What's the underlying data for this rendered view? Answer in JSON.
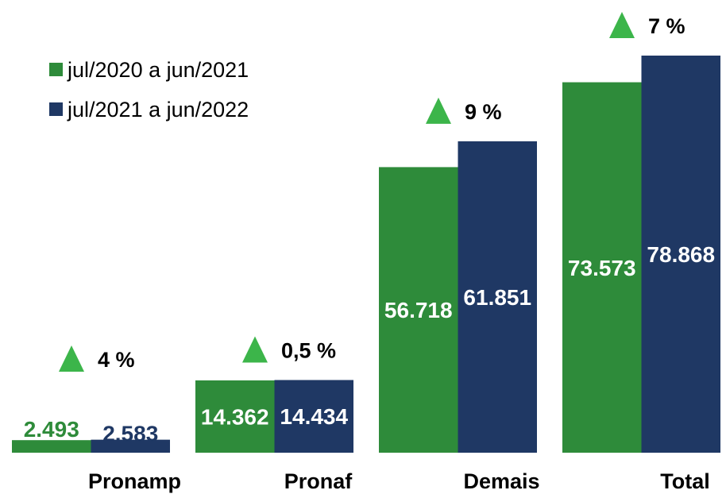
{
  "chart_data": {
    "type": "bar",
    "categories": [
      "Pronamp",
      "Pronaf",
      "Demais",
      "Total"
    ],
    "series": [
      {
        "name": "jul/2020 a jun/2021",
        "color": "#2e8b3a",
        "values": [
          2493,
          14362,
          56718,
          73573
        ],
        "value_labels": [
          "2.493",
          "14.362",
          "56.718",
          "73.573"
        ]
      },
      {
        "name": "jul/2021 a jun/2022",
        "color": "#1f3864",
        "values": [
          2583,
          14434,
          61851,
          78868
        ],
        "value_labels": [
          "2.583",
          "14.434",
          "61.851",
          "78.868"
        ]
      }
    ],
    "annotations": [
      "4 %",
      "0,5 %",
      "9 %",
      "7 %"
    ],
    "annotation_color": "#3cb54a",
    "legend": "top-left"
  }
}
